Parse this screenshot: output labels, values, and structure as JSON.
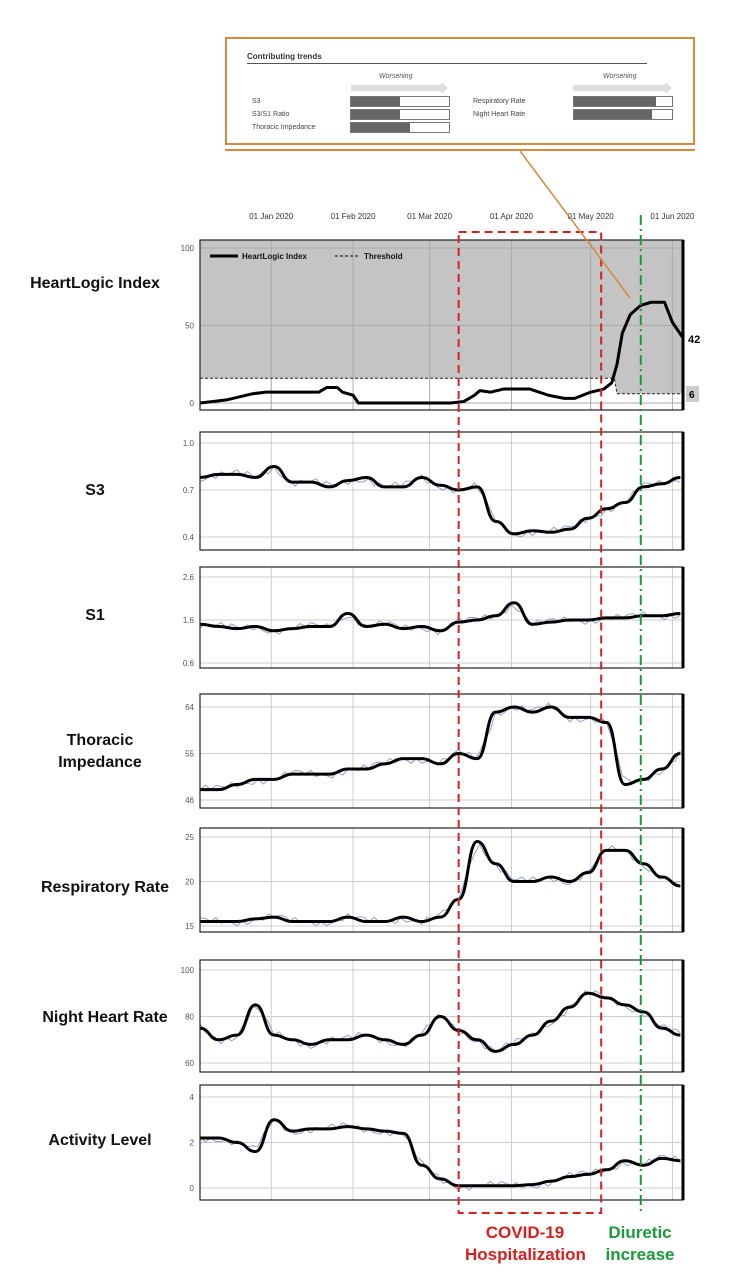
{
  "inset": {
    "title": "Contributing trends",
    "worsening": "Worsening",
    "items": [
      {
        "label": "S3",
        "fraction": 0.5
      },
      {
        "label": "S3/S1 Ratio",
        "fraction": 0.5
      },
      {
        "label": "Thoracic Impedance",
        "fraction": 0.6
      },
      {
        "label": "Respiratory Rate",
        "fraction": 0.84
      },
      {
        "label": "Night Heart Rate",
        "fraction": 0.8
      }
    ]
  },
  "annotations": {
    "covid": "COVID-19 Hospitalization",
    "diuretic": "Diuretic increase",
    "covid_color": "#d62020",
    "diuretic_color": "#1a9a3a",
    "inset_color": "#d8893a"
  },
  "chart_data": {
    "type": "line",
    "x_unit": "days since 05 Dec 2019",
    "x_ticks": [
      {
        "label": "01 Jan 2020",
        "day": 27
      },
      {
        "label": "01 Feb 2020",
        "day": 58
      },
      {
        "label": "01 Mar 2020",
        "day": 87
      },
      {
        "label": "01 Apr 2020",
        "day": 118
      },
      {
        "label": "01 May 2020",
        "day": 148
      },
      {
        "label": "01 Jun 2020",
        "day": 179
      }
    ],
    "xlim": [
      0,
      183
    ],
    "covid_period_days": [
      98,
      152
    ],
    "diuretic_day": 167,
    "panels": [
      {
        "name": "HeartLogic Index",
        "ylim": [
          0,
          100
        ],
        "yticks": [
          "0",
          "50",
          "100"
        ],
        "ytick_values": [
          0,
          50,
          100
        ],
        "legend": [
          "HeartLogic Index",
          "Threshold"
        ],
        "current_value": "42",
        "threshold_value": "6",
        "index": [
          [
            0,
            0
          ],
          [
            5,
            1
          ],
          [
            10,
            2
          ],
          [
            15,
            4
          ],
          [
            20,
            6
          ],
          [
            25,
            7
          ],
          [
            45,
            7
          ],
          [
            48,
            10
          ],
          [
            52,
            10
          ],
          [
            54,
            7
          ],
          [
            56,
            6
          ],
          [
            58,
            5
          ],
          [
            60,
            0
          ],
          [
            95,
            0
          ],
          [
            100,
            1
          ],
          [
            104,
            5
          ],
          [
            106,
            8
          ],
          [
            110,
            7
          ],
          [
            115,
            9
          ],
          [
            125,
            9
          ],
          [
            132,
            5
          ],
          [
            138,
            3
          ],
          [
            142,
            3
          ],
          [
            148,
            7
          ],
          [
            153,
            9
          ],
          [
            156,
            13
          ],
          [
            158,
            25
          ],
          [
            160,
            45
          ],
          [
            163,
            57
          ],
          [
            167,
            63
          ],
          [
            171,
            65
          ],
          [
            176,
            65
          ],
          [
            179,
            52
          ],
          [
            183,
            42
          ]
        ],
        "threshold": [
          [
            0,
            16
          ],
          [
            157,
            16
          ],
          [
            158,
            6
          ],
          [
            183,
            6
          ]
        ]
      },
      {
        "name": "S3",
        "ylim": [
          0.4,
          1.0
        ],
        "yticks": [
          "0.4",
          "0.7",
          "1.0"
        ],
        "ytick_values": [
          0.4,
          0.7,
          1.0
        ],
        "trend": [
          0.78,
          0.8,
          0.8,
          0.78,
          0.85,
          0.75,
          0.75,
          0.72,
          0.76,
          0.78,
          0.72,
          0.72,
          0.78,
          0.73,
          0.7,
          0.72,
          0.5,
          0.42,
          0.44,
          0.43,
          0.45,
          0.52,
          0.58,
          0.62,
          0.72,
          0.74,
          0.78
        ]
      },
      {
        "name": "S1",
        "ylim": [
          0.6,
          2.6
        ],
        "yticks": [
          "0.6",
          "1.6",
          "2.6"
        ],
        "ytick_values": [
          0.6,
          1.6,
          2.6
        ],
        "trend": [
          1.5,
          1.45,
          1.4,
          1.45,
          1.35,
          1.4,
          1.45,
          1.45,
          1.75,
          1.45,
          1.5,
          1.4,
          1.45,
          1.35,
          1.55,
          1.6,
          1.7,
          2.0,
          1.5,
          1.55,
          1.6,
          1.6,
          1.65,
          1.65,
          1.7,
          1.7,
          1.75
        ]
      },
      {
        "name": "Thoracic Impedance",
        "ylim": [
          46,
          64
        ],
        "yticks": [
          "46",
          "55",
          "64"
        ],
        "ytick_values": [
          46,
          55,
          64
        ],
        "trend": [
          48,
          48,
          49,
          50,
          50,
          51,
          51,
          51,
          52,
          52,
          53,
          54,
          54,
          53,
          55,
          54,
          63,
          64,
          63,
          64,
          62,
          62,
          61,
          49,
          50,
          52,
          55
        ]
      },
      {
        "name": "Respiratory Rate",
        "ylim": [
          15,
          25
        ],
        "yticks": [
          "15",
          "20",
          "25"
        ],
        "ytick_values": [
          15,
          20,
          25
        ],
        "trend": [
          15.5,
          15.5,
          15.5,
          15.8,
          16,
          15.5,
          15.5,
          15.5,
          16,
          15.5,
          15.5,
          16,
          15.5,
          16,
          18,
          24.5,
          22,
          20,
          20,
          20.5,
          20,
          21,
          23.5,
          23.5,
          22,
          20.5,
          19.5
        ]
      },
      {
        "name": "Night Heart Rate",
        "ylim": [
          60,
          100
        ],
        "yticks": [
          "60",
          "80",
          "100"
        ],
        "ytick_values": [
          60,
          80,
          100
        ],
        "trend": [
          75,
          70,
          72,
          85,
          72,
          70,
          68,
          70,
          70,
          72,
          70,
          68,
          72,
          80,
          74,
          70,
          65,
          68,
          72,
          78,
          84,
          90,
          88,
          85,
          82,
          75,
          72
        ]
      },
      {
        "name": "Activity Level",
        "ylim": [
          0,
          4
        ],
        "yticks": [
          "0",
          "2",
          "4"
        ],
        "ytick_values": [
          0,
          2,
          4
        ],
        "trend": [
          2.2,
          2.2,
          2.0,
          1.6,
          3.0,
          2.5,
          2.6,
          2.6,
          2.7,
          2.6,
          2.5,
          2.4,
          1.0,
          0.4,
          0.1,
          0.1,
          0.1,
          0.1,
          0.15,
          0.3,
          0.5,
          0.6,
          0.8,
          1.2,
          1.0,
          1.3,
          1.2
        ]
      }
    ],
    "trend_step_days": 7
  }
}
